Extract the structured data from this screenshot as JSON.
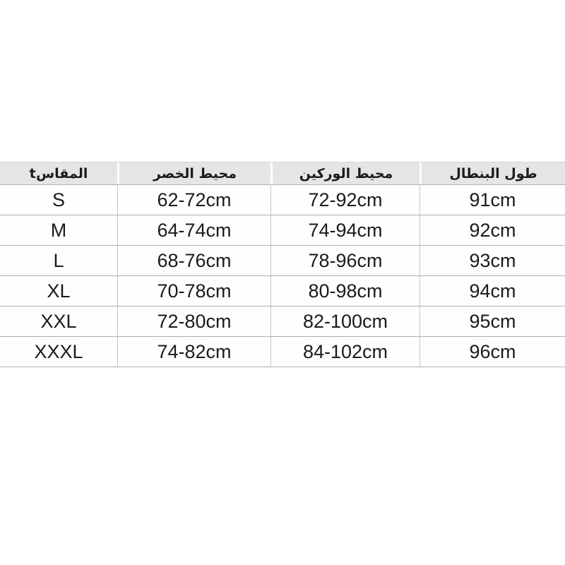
{
  "chart_data": {
    "type": "table",
    "columns": [
      "المقاسt",
      "محيط الخصر",
      "محيط الوركين",
      "طول البنطال"
    ],
    "rows": [
      [
        "S",
        "62-72cm",
        "72-92cm",
        "91cm"
      ],
      [
        "M",
        "64-74cm",
        "74-94cm",
        "92cm"
      ],
      [
        "L",
        "68-76cm",
        "78-96cm",
        "93cm"
      ],
      [
        "XL",
        "70-78cm",
        "80-98cm",
        "94cm"
      ],
      [
        "XXL",
        "72-80cm",
        "82-100cm",
        "95cm"
      ],
      [
        "XXXL",
        "74-82cm",
        "84-102cm",
        "96cm"
      ]
    ]
  },
  "colors": {
    "background": "#ffffff",
    "header_background": "#e5e5e7",
    "row_divider": "#b0b0b0",
    "column_divider": "#c6c6c6",
    "text": "#1b1b1b"
  }
}
